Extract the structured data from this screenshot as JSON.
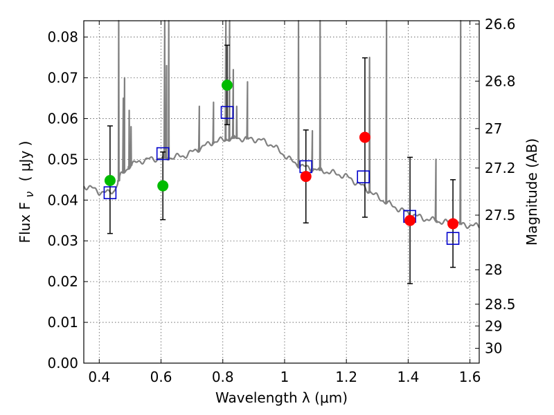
{
  "chart_data": {
    "type": "scatter",
    "title": "",
    "xlabel": "Wavelength  λ (μm)",
    "ylabel": "Flux  F",
    "ylabel_sub": "ν",
    "ylabel_unit": "( μJy )",
    "right_ylabel": "Magnitude (AB)",
    "xlim": [
      0.35,
      1.63
    ],
    "ylim": [
      0.0,
      0.084
    ],
    "grid": true,
    "x_ticks": [
      0.4,
      0.6,
      0.8,
      1.0,
      1.2,
      1.4,
      1.6
    ],
    "x_tick_labels": [
      "0.4",
      "0.6",
      "0.8",
      "1",
      "1.2",
      "1.4",
      "1.6"
    ],
    "y_ticks": [
      0.0,
      0.01,
      0.02,
      0.03,
      0.04,
      0.05,
      0.06,
      0.07,
      0.08
    ],
    "y_tick_labels": [
      "0.00",
      "0.01",
      "0.02",
      "0.03",
      "0.04",
      "0.05",
      "0.06",
      "0.07",
      "0.08"
    ],
    "right_ticks": [
      {
        "label": "26.6",
        "mag": 26.6
      },
      {
        "label": "26.8",
        "mag": 26.8
      },
      {
        "label": "27",
        "mag": 27.0
      },
      {
        "label": "27.2",
        "mag": 27.2
      },
      {
        "label": "27.5",
        "mag": 27.5
      },
      {
        "label": "28",
        "mag": 28.0
      },
      {
        "label": "28.5",
        "mag": 28.5
      },
      {
        "label": "29",
        "mag": 29.0
      },
      {
        "label": "30",
        "mag": 30.0
      }
    ],
    "colors": {
      "sed": "#808080",
      "model": "#0000cc",
      "green": "#00bb00",
      "red": "#ff0000",
      "error": "#000000"
    },
    "series": [
      {
        "kind": "observed_green",
        "points": [
          {
            "x": 0.435,
            "y": 0.0448,
            "err_lo": 0.0318,
            "err_hi": 0.0582
          },
          {
            "x": 0.606,
            "y": 0.0435,
            "err_lo": 0.0352,
            "err_hi": 0.0518
          },
          {
            "x": 0.814,
            "y": 0.0682,
            "err_lo": 0.0585,
            "err_hi": 0.078
          }
        ]
      },
      {
        "kind": "observed_red",
        "points": [
          {
            "x": 1.069,
            "y": 0.0458,
            "err_lo": 0.0344,
            "err_hi": 0.0572
          },
          {
            "x": 1.26,
            "y": 0.0554,
            "err_lo": 0.0358,
            "err_hi": 0.0749
          },
          {
            "x": 1.406,
            "y": 0.035,
            "err_lo": 0.0195,
            "err_hi": 0.0505
          },
          {
            "x": 1.545,
            "y": 0.0342,
            "err_lo": 0.0235,
            "err_hi": 0.045
          }
        ]
      },
      {
        "kind": "model",
        "points": [
          {
            "x": 0.435,
            "y": 0.0418
          },
          {
            "x": 0.606,
            "y": 0.0514
          },
          {
            "x": 0.814,
            "y": 0.0615
          },
          {
            "x": 1.069,
            "y": 0.0482
          },
          {
            "x": 1.255,
            "y": 0.0457
          },
          {
            "x": 1.405,
            "y": 0.036
          },
          {
            "x": 1.545,
            "y": 0.0306
          }
        ]
      },
      {
        "kind": "sed",
        "continuum": [
          [
            0.35,
            0.0435
          ],
          [
            0.38,
            0.0428
          ],
          [
            0.4,
            0.042
          ],
          [
            0.43,
            0.0418
          ],
          [
            0.45,
            0.0425
          ],
          [
            0.47,
            0.046
          ],
          [
            0.5,
            0.0485
          ],
          [
            0.53,
            0.0495
          ],
          [
            0.56,
            0.05
          ],
          [
            0.6,
            0.0502
          ],
          [
            0.64,
            0.0505
          ],
          [
            0.68,
            0.051
          ],
          [
            0.72,
            0.0525
          ],
          [
            0.76,
            0.054
          ],
          [
            0.8,
            0.0548
          ],
          [
            0.84,
            0.0552
          ],
          [
            0.88,
            0.055
          ],
          [
            0.92,
            0.0548
          ],
          [
            0.96,
            0.0535
          ],
          [
            1.0,
            0.051
          ],
          [
            1.03,
            0.0492
          ],
          [
            1.06,
            0.0482
          ],
          [
            1.1,
            0.0475
          ],
          [
            1.15,
            0.0468
          ],
          [
            1.2,
            0.0458
          ],
          [
            1.25,
            0.0435
          ],
          [
            1.3,
            0.0408
          ],
          [
            1.35,
            0.0385
          ],
          [
            1.4,
            0.0368
          ],
          [
            1.45,
            0.0355
          ],
          [
            1.5,
            0.0348
          ],
          [
            1.55,
            0.0342
          ],
          [
            1.6,
            0.0338
          ],
          [
            1.63,
            0.0336
          ]
        ],
        "lines": [
          {
            "x": 0.463,
            "peak": 0.084
          },
          {
            "x": 0.478,
            "peak": 0.065
          },
          {
            "x": 0.482,
            "peak": 0.07
          },
          {
            "x": 0.497,
            "peak": 0.062
          },
          {
            "x": 0.503,
            "peak": 0.058
          },
          {
            "x": 0.612,
            "peak": 0.084
          },
          {
            "x": 0.618,
            "peak": 0.073
          },
          {
            "x": 0.625,
            "peak": 0.084
          },
          {
            "x": 0.724,
            "peak": 0.063
          },
          {
            "x": 0.77,
            "peak": 0.064
          },
          {
            "x": 0.81,
            "peak": 0.084
          },
          {
            "x": 0.822,
            "peak": 0.084
          },
          {
            "x": 0.834,
            "peak": 0.072
          },
          {
            "x": 0.845,
            "peak": 0.063
          },
          {
            "x": 0.88,
            "peak": 0.069
          },
          {
            "x": 1.045,
            "peak": 0.084
          },
          {
            "x": 1.09,
            "peak": 0.057
          },
          {
            "x": 1.115,
            "peak": 0.084
          },
          {
            "x": 1.275,
            "peak": 0.075
          },
          {
            "x": 1.33,
            "peak": 0.084
          },
          {
            "x": 1.49,
            "peak": 0.05
          },
          {
            "x": 1.57,
            "peak": 0.084
          }
        ]
      }
    ]
  }
}
